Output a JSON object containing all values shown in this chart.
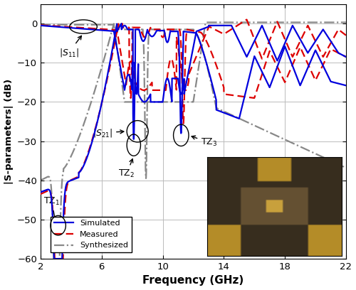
{
  "xlabel": "Frequency (GHz)",
  "ylabel": "|S-parameters| (dB)",
  "xlim": [
    2,
    22
  ],
  "ylim": [
    -60,
    5
  ],
  "yticks": [
    0,
    -10,
    -20,
    -30,
    -40,
    -50,
    -60
  ],
  "xticks": [
    2,
    6,
    10,
    14,
    18,
    22
  ],
  "simulated_color": "#0000DD",
  "measured_color": "#DD0000",
  "synthesized_color": "#888888",
  "bg_color": "#ffffff",
  "grid_color": "#bbbbbb"
}
